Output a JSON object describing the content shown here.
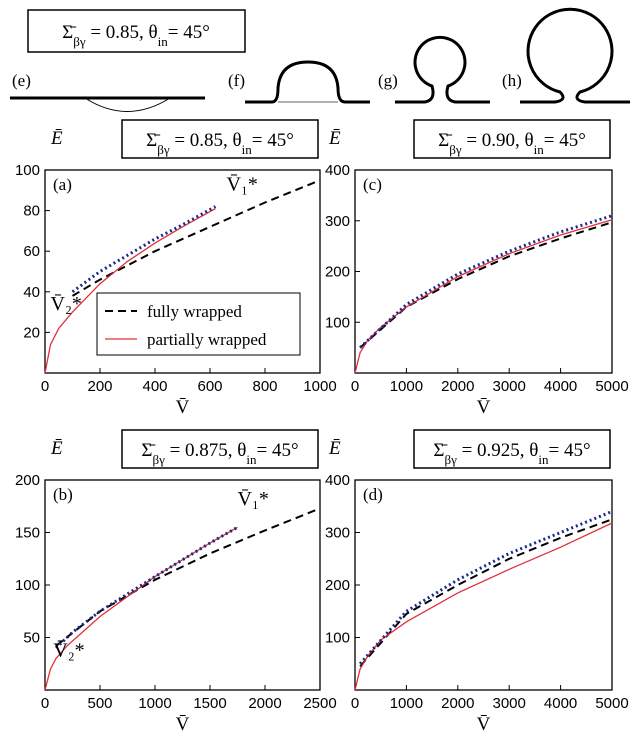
{
  "top_label": [
    "Σ̄",
    "βγ",
    " = 0.85, θ",
    "in",
    "= 45°"
  ],
  "sketches": [
    "(e)",
    "(f)",
    "(g)",
    "(h)"
  ],
  "chart_data": [
    {
      "type": "line",
      "panel": "(a)",
      "title": [
        "Σ̄",
        "βγ",
        " = 0.85, θ",
        "in",
        "= 45°"
      ],
      "x_label": "V̄",
      "y_label": "Ē",
      "xlim": [
        0,
        1000
      ],
      "xticks": [
        0,
        200,
        400,
        600,
        800,
        1000
      ],
      "ylim": [
        0,
        100
      ],
      "yticks": [
        20,
        40,
        60,
        80,
        100
      ],
      "legend": "lower right",
      "annotations": [
        "V̄₁*",
        "V̄₂*"
      ],
      "series": [
        {
          "name": "fully wrapped",
          "color": "#000000",
          "style": "dashed",
          "x": [
            100,
            200,
            400,
            600,
            800,
            1000
          ],
          "values": [
            38,
            46,
            60,
            72,
            84,
            95
          ]
        },
        {
          "name": "partially wrapped",
          "color": "#e0303a",
          "style": "solid",
          "x": [
            0,
            20,
            50,
            100,
            200,
            300,
            400,
            500,
            620
          ],
          "values": [
            0,
            14,
            22,
            30,
            44,
            55,
            64,
            72,
            81
          ]
        },
        {
          "color": "#1a2a8a",
          "style": "dotted",
          "x": [
            100,
            200,
            300,
            400,
            500,
            620
          ],
          "values": [
            40,
            50,
            58,
            66,
            73,
            82
          ]
        }
      ]
    },
    {
      "type": "line",
      "panel": "(b)",
      "title": [
        "Σ̄",
        "βγ",
        " = 0.875, θ",
        "in",
        "= 45°"
      ],
      "x_label": "V̄",
      "y_label": "Ē",
      "xlim": [
        0,
        2500
      ],
      "xticks": [
        0,
        500,
        1000,
        1500,
        2000,
        2500
      ],
      "ylim": [
        0,
        200
      ],
      "yticks": [
        50,
        100,
        150,
        200
      ],
      "annotations": [
        "V̄₁*",
        "V̄₂*"
      ],
      "series": [
        {
          "color": "#000000",
          "style": "dashed",
          "x": [
            100,
            500,
            1000,
            1500,
            2000,
            2500
          ],
          "values": [
            42,
            75,
            105,
            130,
            152,
            173
          ]
        },
        {
          "color": "#e0303a",
          "style": "solid",
          "x": [
            0,
            50,
            100,
            200,
            500,
            1000,
            1500,
            1750
          ],
          "values": [
            0,
            20,
            30,
            42,
            70,
            108,
            140,
            155
          ]
        },
        {
          "color": "#1a2a8a",
          "style": "dotted",
          "x": [
            100,
            250,
            500,
            1000,
            1500,
            1750
          ],
          "values": [
            40,
            55,
            75,
            108,
            140,
            155
          ]
        }
      ]
    },
    {
      "type": "line",
      "panel": "(c)",
      "title": [
        "Σ̄",
        "βγ",
        " = 0.90, θ",
        "in",
        "= 45°"
      ],
      "x_label": "V̄",
      "y_label": "Ē",
      "xlim": [
        0,
        5000
      ],
      "xticks": [
        0,
        1000,
        2000,
        3000,
        4000,
        5000
      ],
      "ylim": [
        0,
        400
      ],
      "yticks": [
        100,
        200,
        300,
        400
      ],
      "annotations": [],
      "series": [
        {
          "color": "#000000",
          "style": "dashed",
          "x": [
            100,
            1000,
            2000,
            3000,
            4000,
            5000
          ],
          "values": [
            50,
            130,
            185,
            230,
            265,
            297
          ]
        },
        {
          "color": "#e0303a",
          "style": "solid",
          "x": [
            0,
            100,
            250,
            500,
            1000,
            2000,
            3000,
            4000,
            5000
          ],
          "values": [
            0,
            40,
            65,
            90,
            130,
            190,
            235,
            272,
            302
          ]
        },
        {
          "color": "#1a2a8a",
          "style": "dotted",
          "x": [
            100,
            1000,
            2000,
            3000,
            4000,
            5000
          ],
          "values": [
            50,
            135,
            195,
            240,
            278,
            310
          ]
        }
      ]
    },
    {
      "type": "line",
      "panel": "(d)",
      "title": [
        "Σ̄",
        "βγ",
        " = 0.925, θ",
        "in",
        "= 45°"
      ],
      "x_label": "V̄",
      "y_label": "Ē",
      "xlim": [
        0,
        5000
      ],
      "xticks": [
        0,
        1000,
        2000,
        3000,
        4000,
        5000
      ],
      "ylim": [
        0,
        400
      ],
      "yticks": [
        100,
        200,
        300,
        400
      ],
      "annotations": [],
      "series": [
        {
          "color": "#000000",
          "style": "dashed",
          "x": [
            100,
            1000,
            2000,
            3000,
            4000,
            5000
          ],
          "values": [
            45,
            145,
            200,
            250,
            290,
            325
          ]
        },
        {
          "color": "#e0303a",
          "style": "solid",
          "x": [
            0,
            100,
            250,
            500,
            1000,
            2000,
            3000,
            4000,
            5000
          ],
          "values": [
            0,
            40,
            65,
            95,
            130,
            185,
            230,
            272,
            318
          ]
        },
        {
          "color": "#1a2a8a",
          "style": "dotted",
          "x": [
            100,
            1000,
            2000,
            3000,
            4000,
            5000
          ],
          "values": [
            50,
            150,
            210,
            260,
            300,
            340
          ]
        }
      ]
    }
  ]
}
